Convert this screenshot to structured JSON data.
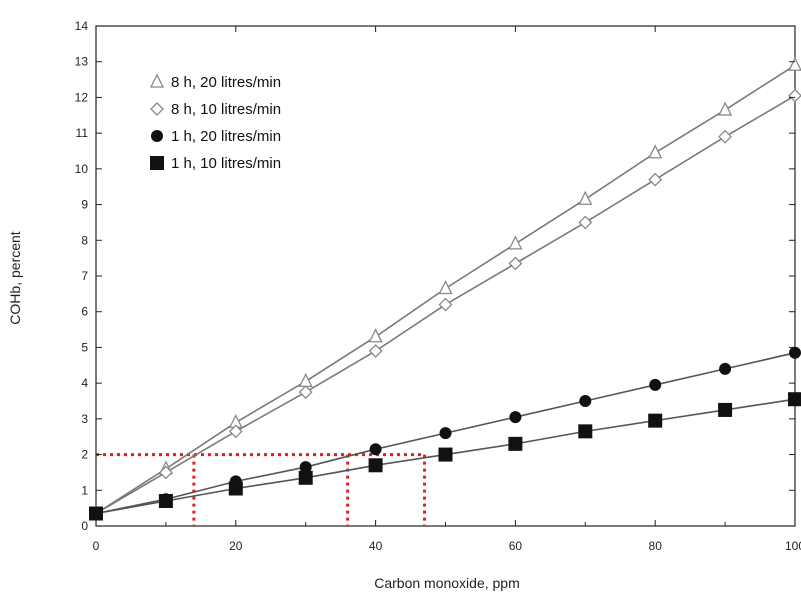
{
  "chart_data": {
    "type": "line",
    "xlabel": "Carbon monoxide, ppm",
    "ylabel": "COHb, percent",
    "xlim": [
      0,
      100
    ],
    "ylim": [
      0,
      14
    ],
    "x_ticks": [
      0,
      20,
      40,
      60,
      80,
      100
    ],
    "y_ticks": [
      0,
      1,
      2,
      3,
      4,
      5,
      6,
      7,
      8,
      9,
      10,
      11,
      12,
      13,
      14
    ],
    "grid": false,
    "legend_position": "top-left",
    "series": [
      {
        "name": "8 h, 20 litres/min",
        "marker": "open-triangle",
        "line_color": "#7a7a7a",
        "x": [
          0,
          10,
          20,
          30,
          40,
          50,
          60,
          70,
          80,
          90,
          100
        ],
        "y": [
          0.35,
          1.6,
          2.9,
          4.05,
          5.3,
          6.65,
          7.9,
          9.15,
          10.45,
          11.65,
          12.9
        ]
      },
      {
        "name": "8 h, 10 litres/min",
        "marker": "open-diamond",
        "line_color": "#7a7a7a",
        "x": [
          0,
          10,
          20,
          30,
          40,
          50,
          60,
          70,
          80,
          90,
          100
        ],
        "y": [
          0.35,
          1.5,
          2.65,
          3.75,
          4.9,
          6.2,
          7.35,
          8.5,
          9.7,
          10.9,
          12.05
        ]
      },
      {
        "name": "1 h, 20 litres/min",
        "marker": "filled-circle",
        "line_color": "#555555",
        "x": [
          0,
          10,
          20,
          30,
          40,
          50,
          60,
          70,
          80,
          90,
          100
        ],
        "y": [
          0.35,
          0.75,
          1.25,
          1.65,
          2.15,
          2.6,
          3.05,
          3.5,
          3.95,
          4.4,
          4.85
        ]
      },
      {
        "name": "1 h, 10 litres/min",
        "marker": "filled-square",
        "line_color": "#555555",
        "x": [
          0,
          10,
          20,
          30,
          40,
          50,
          60,
          70,
          80,
          90,
          100
        ],
        "y": [
          0.35,
          0.7,
          1.05,
          1.35,
          1.7,
          2.0,
          2.3,
          2.65,
          2.95,
          3.25,
          3.55
        ]
      }
    ],
    "reference_lines": {
      "color": "#e0201c",
      "style": "dotted",
      "y_level": 2,
      "x_drops": [
        14,
        36,
        47
      ]
    }
  }
}
